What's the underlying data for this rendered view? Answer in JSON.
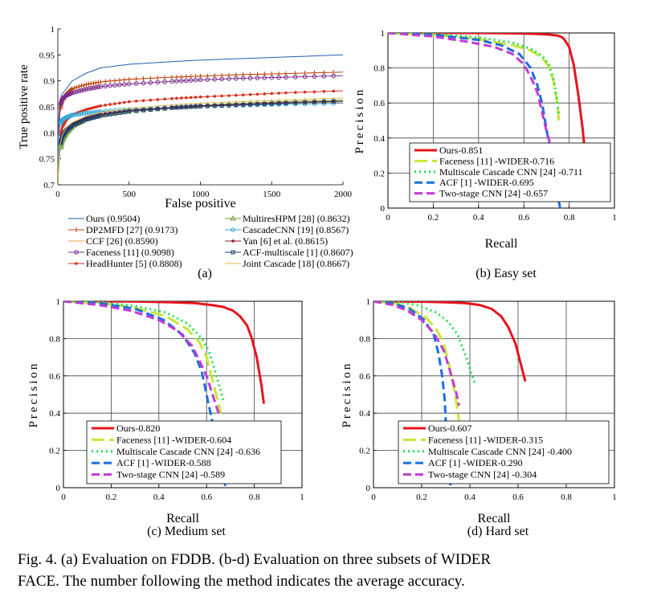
{
  "caption_lines": [
    "Fig. 4.  (a) Evaluation on FDDB. (b-d) Evaluation on three subsets of WIDER",
    "FACE. The number following the method indicates the average accuracy."
  ],
  "chart_data": [
    {
      "id": "a",
      "type": "line",
      "sublabel": "(a)",
      "xlabel": "False positive",
      "ylabel": "True positive rate",
      "xlim": [
        0,
        2000
      ],
      "ylim": [
        0.7,
        1.0
      ],
      "xticks": [
        0,
        500,
        1000,
        1500,
        2000
      ],
      "yticks": [
        0.7,
        0.75,
        0.8,
        0.85,
        0.9,
        0.95,
        1
      ],
      "ytick_labels": [
        "0.7",
        "0.75",
        "0.8",
        "0.85",
        "0.9",
        "0.95",
        "1"
      ],
      "grid": false,
      "legend_position": "below",
      "series": [
        {
          "name": "Ours (0.9504)",
          "color": "#1f5fb4",
          "marker": "none",
          "x": [
            0,
            5,
            15,
            30,
            60,
            100,
            200,
            300,
            500,
            800,
            1000,
            1300,
            1600,
            2000
          ],
          "y": [
            0.7,
            0.82,
            0.86,
            0.875,
            0.885,
            0.9,
            0.915,
            0.925,
            0.932,
            0.937,
            0.94,
            0.943,
            0.946,
            0.95
          ]
        },
        {
          "name": "DP2MFD [27] (0.9173)",
          "color": "#c1440e",
          "marker": "plus",
          "x": [
            0,
            5,
            15,
            30,
            60,
            100,
            200,
            300,
            500,
            800,
            1000,
            1300,
            1600,
            2000
          ],
          "y": [
            0.7,
            0.8,
            0.84,
            0.86,
            0.875,
            0.885,
            0.893,
            0.898,
            0.903,
            0.907,
            0.909,
            0.912,
            0.914,
            0.917
          ]
        },
        {
          "name": "CCF [26] (0.8590)",
          "color": "#f59b3c",
          "marker": "none",
          "x": [
            0,
            5,
            15,
            30,
            60,
            100,
            200,
            300,
            500,
            800,
            1000,
            1300,
            1600,
            2000
          ],
          "y": [
            0.7,
            0.74,
            0.77,
            0.79,
            0.805,
            0.815,
            0.828,
            0.835,
            0.842,
            0.848,
            0.851,
            0.854,
            0.857,
            0.859
          ]
        },
        {
          "name": "Faceness [11] (0.9098)",
          "color": "#7b2d8e",
          "marker": "circle",
          "x": [
            0,
            5,
            15,
            30,
            60,
            100,
            200,
            300,
            500,
            800,
            1000,
            1300,
            1600,
            2000
          ],
          "y": [
            0.7,
            0.81,
            0.85,
            0.865,
            0.872,
            0.877,
            0.884,
            0.889,
            0.894,
            0.899,
            0.902,
            0.905,
            0.907,
            0.91
          ]
        },
        {
          "name": "HeadHunter [5] (0.8808)",
          "color": "#d7301f",
          "marker": "dot",
          "x": [
            0,
            5,
            15,
            30,
            60,
            100,
            200,
            300,
            500,
            800,
            1000,
            1300,
            1600,
            2000
          ],
          "y": [
            0.7,
            0.75,
            0.79,
            0.81,
            0.825,
            0.835,
            0.845,
            0.852,
            0.86,
            0.866,
            0.869,
            0.873,
            0.877,
            0.881
          ]
        },
        {
          "name": "MultiresHPM [28] (0.8632)",
          "color": "#6da23a",
          "marker": "triangle",
          "x": [
            0,
            5,
            15,
            30,
            60,
            100,
            200,
            300,
            500,
            800,
            1000,
            1300,
            1600,
            2000
          ],
          "y": [
            0.7,
            0.73,
            0.765,
            0.785,
            0.8,
            0.812,
            0.826,
            0.834,
            0.842,
            0.849,
            0.853,
            0.857,
            0.86,
            0.863
          ]
        },
        {
          "name": "CascadeCNN [19] (0.8567)",
          "color": "#35a9d6",
          "marker": "circle",
          "x": [
            0,
            5,
            15,
            30,
            60,
            100,
            200,
            300,
            500,
            800,
            1000,
            1300,
            1600,
            2000
          ],
          "y": [
            0.7,
            0.79,
            0.815,
            0.825,
            0.83,
            0.834,
            0.838,
            0.841,
            0.845,
            0.849,
            0.851,
            0.853,
            0.855,
            0.857
          ]
        },
        {
          "name": "Yan [6] et al. (0.8615)",
          "color": "#8b1a2b",
          "marker": "dot",
          "x": [
            0,
            5,
            15,
            30,
            60,
            100,
            200,
            300,
            500,
            800,
            1000,
            1300,
            1600,
            2000
          ],
          "y": [
            0.7,
            0.74,
            0.775,
            0.795,
            0.808,
            0.817,
            0.829,
            0.836,
            0.843,
            0.849,
            0.852,
            0.855,
            0.858,
            0.861
          ]
        },
        {
          "name": "ACF-multiscale [1] (0.8607)",
          "color": "#1d3c6e",
          "marker": "square",
          "x": [
            0,
            5,
            15,
            30,
            60,
            100,
            200,
            300,
            500,
            800,
            1000,
            1300,
            1600,
            2000
          ],
          "y": [
            0.7,
            0.745,
            0.775,
            0.792,
            0.805,
            0.814,
            0.826,
            0.833,
            0.841,
            0.848,
            0.851,
            0.854,
            0.857,
            0.861
          ]
        },
        {
          "name": "Joint Cascade [18] (0.8667)",
          "color": "#e7b64b",
          "marker": "none",
          "x": [
            0,
            5,
            15,
            30,
            60,
            100,
            200,
            300,
            500,
            800,
            1000,
            1300,
            1600,
            2000
          ],
          "y": [
            0.7,
            0.74,
            0.775,
            0.795,
            0.81,
            0.82,
            0.832,
            0.839,
            0.847,
            0.854,
            0.857,
            0.86,
            0.863,
            0.867
          ]
        }
      ]
    },
    {
      "id": "b",
      "type": "line",
      "sublabel": "(b) Easy set",
      "xlabel": "Recall",
      "ylabel": "Precision",
      "xlim": [
        0,
        1
      ],
      "ylim": [
        0,
        1
      ],
      "xticks": [
        0,
        0.2,
        0.4,
        0.6,
        0.8,
        1
      ],
      "yticks": [
        0,
        0.2,
        0.4,
        0.6,
        0.8,
        1
      ],
      "grid": true,
      "legend_position": "bottom-left",
      "series": [
        {
          "name": "Ours-0.851",
          "color": "#e8141c",
          "dash": "solid",
          "x": [
            0,
            0.3,
            0.5,
            0.65,
            0.72,
            0.75,
            0.77,
            0.78,
            0.8,
            0.82,
            0.84,
            0.86,
            0.871
          ],
          "y": [
            1,
            1,
            0.999,
            0.995,
            0.99,
            0.985,
            0.975,
            0.96,
            0.92,
            0.82,
            0.65,
            0.45,
            0.3
          ]
        },
        {
          "name": "Faceness [11] -WIDER-0.716",
          "color": "#c8e534",
          "dash": "long",
          "x": [
            0,
            0.2,
            0.4,
            0.55,
            0.63,
            0.68,
            0.71,
            0.73,
            0.745,
            0.755
          ],
          "y": [
            1,
            0.99,
            0.965,
            0.93,
            0.9,
            0.86,
            0.81,
            0.73,
            0.62,
            0.5
          ]
        },
        {
          "name": "Multiscale Cascade CNN [24] -0.711",
          "color": "#22e052",
          "dash": "dot",
          "x": [
            0,
            0.2,
            0.4,
            0.55,
            0.63,
            0.68,
            0.71,
            0.73,
            0.745,
            0.755
          ],
          "y": [
            1,
            0.995,
            0.975,
            0.945,
            0.91,
            0.87,
            0.82,
            0.74,
            0.63,
            0.53
          ]
        },
        {
          "name": "ACF [1] -WIDER-0.695",
          "color": "#1c6fe0",
          "dash": "dash",
          "x": [
            0,
            0.2,
            0.4,
            0.5,
            0.58,
            0.63,
            0.66,
            0.68,
            0.7,
            0.72,
            0.74,
            0.76
          ],
          "y": [
            1,
            0.99,
            0.96,
            0.93,
            0.88,
            0.8,
            0.7,
            0.6,
            0.45,
            0.3,
            0.15,
            0
          ]
        },
        {
          "name": "Two-stage CNN [24] -0.657",
          "color": "#c23ad6",
          "dash": "dash",
          "x": [
            0,
            0.2,
            0.35,
            0.47,
            0.55,
            0.6,
            0.63,
            0.66,
            0.68,
            0.7,
            0.72
          ],
          "y": [
            1,
            0.98,
            0.95,
            0.92,
            0.88,
            0.82,
            0.75,
            0.66,
            0.55,
            0.44,
            0.35
          ]
        }
      ]
    },
    {
      "id": "c",
      "type": "line",
      "sublabel": "(c) Medium set",
      "xlabel": "Recall",
      "ylabel": "Precision",
      "xlim": [
        0,
        1
      ],
      "ylim": [
        0,
        1
      ],
      "xticks": [
        0,
        0.2,
        0.4,
        0.6,
        0.8,
        1
      ],
      "yticks": [
        0,
        0.2,
        0.4,
        0.6,
        0.8,
        1
      ],
      "grid": true,
      "legend_position": "bottom-left",
      "series": [
        {
          "name": "Ours-0.820",
          "color": "#e8141c",
          "dash": "solid",
          "x": [
            0,
            0.3,
            0.45,
            0.55,
            0.62,
            0.67,
            0.71,
            0.74,
            0.77,
            0.79,
            0.81,
            0.83,
            0.84
          ],
          "y": [
            1,
            0.999,
            0.995,
            0.99,
            0.98,
            0.97,
            0.95,
            0.92,
            0.87,
            0.8,
            0.7,
            0.55,
            0.45
          ]
        },
        {
          "name": "Faceness [11] -WIDER-0.604",
          "color": "#c8e534",
          "dash": "long",
          "x": [
            0,
            0.15,
            0.3,
            0.43,
            0.52,
            0.57,
            0.6,
            0.62,
            0.64,
            0.66
          ],
          "y": [
            1,
            0.99,
            0.965,
            0.92,
            0.85,
            0.78,
            0.7,
            0.6,
            0.5,
            0.4
          ]
        },
        {
          "name": "Multiscale Cascade CNN [24] -0.636",
          "color": "#22e052",
          "dash": "dot",
          "x": [
            0,
            0.15,
            0.3,
            0.43,
            0.52,
            0.58,
            0.61,
            0.63,
            0.65,
            0.67
          ],
          "y": [
            1,
            0.995,
            0.975,
            0.94,
            0.88,
            0.8,
            0.73,
            0.65,
            0.56,
            0.47
          ]
        },
        {
          "name": "ACF [1] -WIDER-0.588",
          "color": "#1c6fe0",
          "dash": "dash",
          "x": [
            0,
            0.15,
            0.3,
            0.42,
            0.5,
            0.55,
            0.58,
            0.6,
            0.62,
            0.64,
            0.66,
            0.68
          ],
          "y": [
            1,
            0.99,
            0.96,
            0.9,
            0.82,
            0.72,
            0.62,
            0.5,
            0.38,
            0.25,
            0.12,
            0
          ]
        },
        {
          "name": "Two-stage CNN [24] -0.589",
          "color": "#c23ad6",
          "dash": "dash",
          "x": [
            0,
            0.15,
            0.28,
            0.4,
            0.48,
            0.54,
            0.57,
            0.6,
            0.62,
            0.64,
            0.65
          ],
          "y": [
            1,
            0.98,
            0.95,
            0.9,
            0.84,
            0.76,
            0.68,
            0.6,
            0.52,
            0.44,
            0.4
          ]
        }
      ]
    },
    {
      "id": "d",
      "type": "line",
      "sublabel": "(d) Hard set",
      "xlabel": "Recall",
      "ylabel": "Precision",
      "xlim": [
        0,
        1
      ],
      "ylim": [
        0,
        1
      ],
      "xticks": [
        0,
        0.2,
        0.4,
        0.6,
        0.8,
        1
      ],
      "yticks": [
        0,
        0.2,
        0.4,
        0.6,
        0.8,
        1
      ],
      "grid": true,
      "legend_position": "bottom-left",
      "series": [
        {
          "name": "Ours-0.607",
          "color": "#e8141c",
          "dash": "solid",
          "x": [
            0,
            0.2,
            0.3,
            0.38,
            0.44,
            0.49,
            0.53,
            0.56,
            0.59,
            0.61,
            0.63
          ],
          "y": [
            1,
            0.998,
            0.995,
            0.99,
            0.98,
            0.96,
            0.92,
            0.86,
            0.77,
            0.67,
            0.57
          ]
        },
        {
          "name": "Faceness [11] -WIDER-0.315",
          "color": "#c8e534",
          "dash": "long",
          "x": [
            0,
            0.08,
            0.15,
            0.22,
            0.26,
            0.29,
            0.31,
            0.33,
            0.345,
            0.355
          ],
          "y": [
            1,
            0.99,
            0.965,
            0.91,
            0.85,
            0.78,
            0.68,
            0.56,
            0.45,
            0.36
          ]
        },
        {
          "name": "Multiscale Cascade CNN [24] -0.400",
          "color": "#22e052",
          "dash": "dot",
          "x": [
            0,
            0.1,
            0.18,
            0.26,
            0.31,
            0.35,
            0.37,
            0.39,
            0.405,
            0.42
          ],
          "y": [
            1,
            0.995,
            0.98,
            0.94,
            0.89,
            0.82,
            0.75,
            0.68,
            0.62,
            0.56
          ]
        },
        {
          "name": "ACF [1] -WIDER-0.290",
          "color": "#1c6fe0",
          "dash": "dash",
          "x": [
            0,
            0.08,
            0.15,
            0.21,
            0.25,
            0.27,
            0.285,
            0.295,
            0.3,
            0.31,
            0.315,
            0.32
          ],
          "y": [
            1,
            0.99,
            0.96,
            0.9,
            0.82,
            0.72,
            0.6,
            0.48,
            0.36,
            0.22,
            0.1,
            0
          ]
        },
        {
          "name": "Two-stage CNN [24] -0.304",
          "color": "#c23ad6",
          "dash": "dash",
          "x": [
            0,
            0.08,
            0.14,
            0.2,
            0.25,
            0.29,
            0.31,
            0.33,
            0.345,
            0.355
          ],
          "y": [
            1,
            0.98,
            0.95,
            0.9,
            0.83,
            0.74,
            0.66,
            0.57,
            0.5,
            0.44
          ]
        }
      ]
    }
  ]
}
